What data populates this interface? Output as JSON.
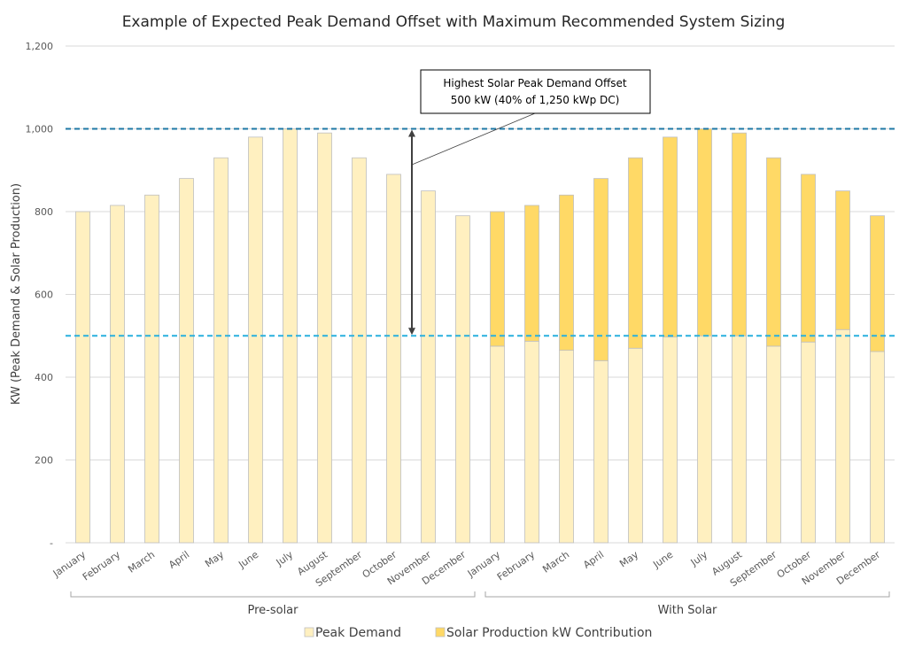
{
  "chart_data": {
    "type": "bar",
    "stacked": true,
    "title": "Example of Expected Peak Demand Offset with Maximum Recommended System Sizing",
    "ylabel": "KW (Peak Demand & Solar Production)",
    "xlabel": "",
    "ylim": [
      0,
      1200
    ],
    "yticks": [
      0,
      200,
      400,
      600,
      800,
      1000,
      1200
    ],
    "ytick_labels": [
      "-",
      "200",
      "400",
      "600",
      "800",
      "1,000",
      "1,200"
    ],
    "grid": true,
    "legend_position": "bottom",
    "categories": [
      "January",
      "February",
      "March",
      "April",
      "May",
      "June",
      "July",
      "August",
      "September",
      "October",
      "November",
      "December",
      "January",
      "February",
      "March",
      "April",
      "May",
      "June",
      "July",
      "August",
      "September",
      "October",
      "November",
      "December"
    ],
    "groups": [
      {
        "label": "Pre-solar",
        "start": 0,
        "end": 11
      },
      {
        "label": "With Solar",
        "start": 12,
        "end": 23
      }
    ],
    "series": [
      {
        "name": "Peak Demand",
        "color": "#FFF0C0",
        "values": [
          800,
          815,
          840,
          880,
          930,
          980,
          1000,
          990,
          930,
          890,
          850,
          790,
          475,
          487,
          465,
          440,
          470,
          497,
          500,
          500,
          475,
          485,
          515,
          462
        ]
      },
      {
        "name": "Solar Production kW Contribution",
        "color": "#FFD966",
        "values": [
          0,
          0,
          0,
          0,
          0,
          0,
          0,
          0,
          0,
          0,
          0,
          0,
          325,
          328,
          375,
          440,
          460,
          483,
          500,
          490,
          455,
          405,
          335,
          328
        ]
      }
    ],
    "reference_lines": [
      {
        "value": 1000,
        "color": "#1F78A6"
      },
      {
        "value": 500,
        "color": "#29B0DE"
      }
    ],
    "annotation": {
      "line1": "Highest Solar Peak Demand Offset",
      "line2": "500 kW (40% of 1,250 kWp DC)",
      "arrow_from": 1000,
      "arrow_to": 500
    }
  }
}
